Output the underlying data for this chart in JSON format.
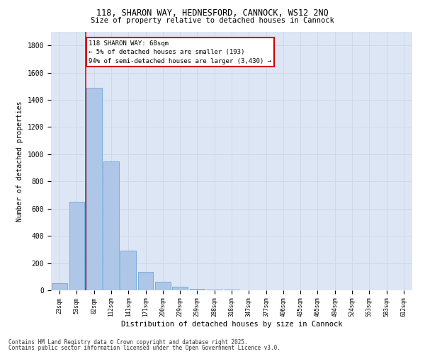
{
  "title_line1": "118, SHARON WAY, HEDNESFORD, CANNOCK, WS12 2NQ",
  "title_line2": "Size of property relative to detached houses in Cannock",
  "xlabel": "Distribution of detached houses by size in Cannock",
  "ylabel": "Number of detached properties",
  "categories": [
    "23sqm",
    "53sqm",
    "82sqm",
    "112sqm",
    "141sqm",
    "171sqm",
    "200sqm",
    "229sqm",
    "259sqm",
    "288sqm",
    "318sqm",
    "347sqm",
    "377sqm",
    "406sqm",
    "435sqm",
    "465sqm",
    "494sqm",
    "524sqm",
    "553sqm",
    "583sqm",
    "612sqm"
  ],
  "values": [
    50,
    650,
    1490,
    950,
    290,
    135,
    65,
    25,
    10,
    5,
    3,
    2,
    1,
    1,
    0,
    0,
    0,
    0,
    0,
    0,
    0
  ],
  "bar_color": "#aec6e8",
  "bar_edge_color": "#5a9fd4",
  "grid_color": "#d0d8e8",
  "background_color": "#dce6f5",
  "annotation_text": "118 SHARON WAY: 68sqm\n← 5% of detached houses are smaller (193)\n94% of semi-detached houses are larger (3,430) →",
  "annotation_box_color": "#ffffff",
  "annotation_box_edge_color": "#cc0000",
  "red_line_x": 1.5,
  "ylim": [
    0,
    1900
  ],
  "yticks": [
    0,
    200,
    400,
    600,
    800,
    1000,
    1200,
    1400,
    1600,
    1800
  ],
  "footnote1": "Contains HM Land Registry data © Crown copyright and database right 2025.",
  "footnote2": "Contains public sector information licensed under the Open Government Licence v3.0."
}
